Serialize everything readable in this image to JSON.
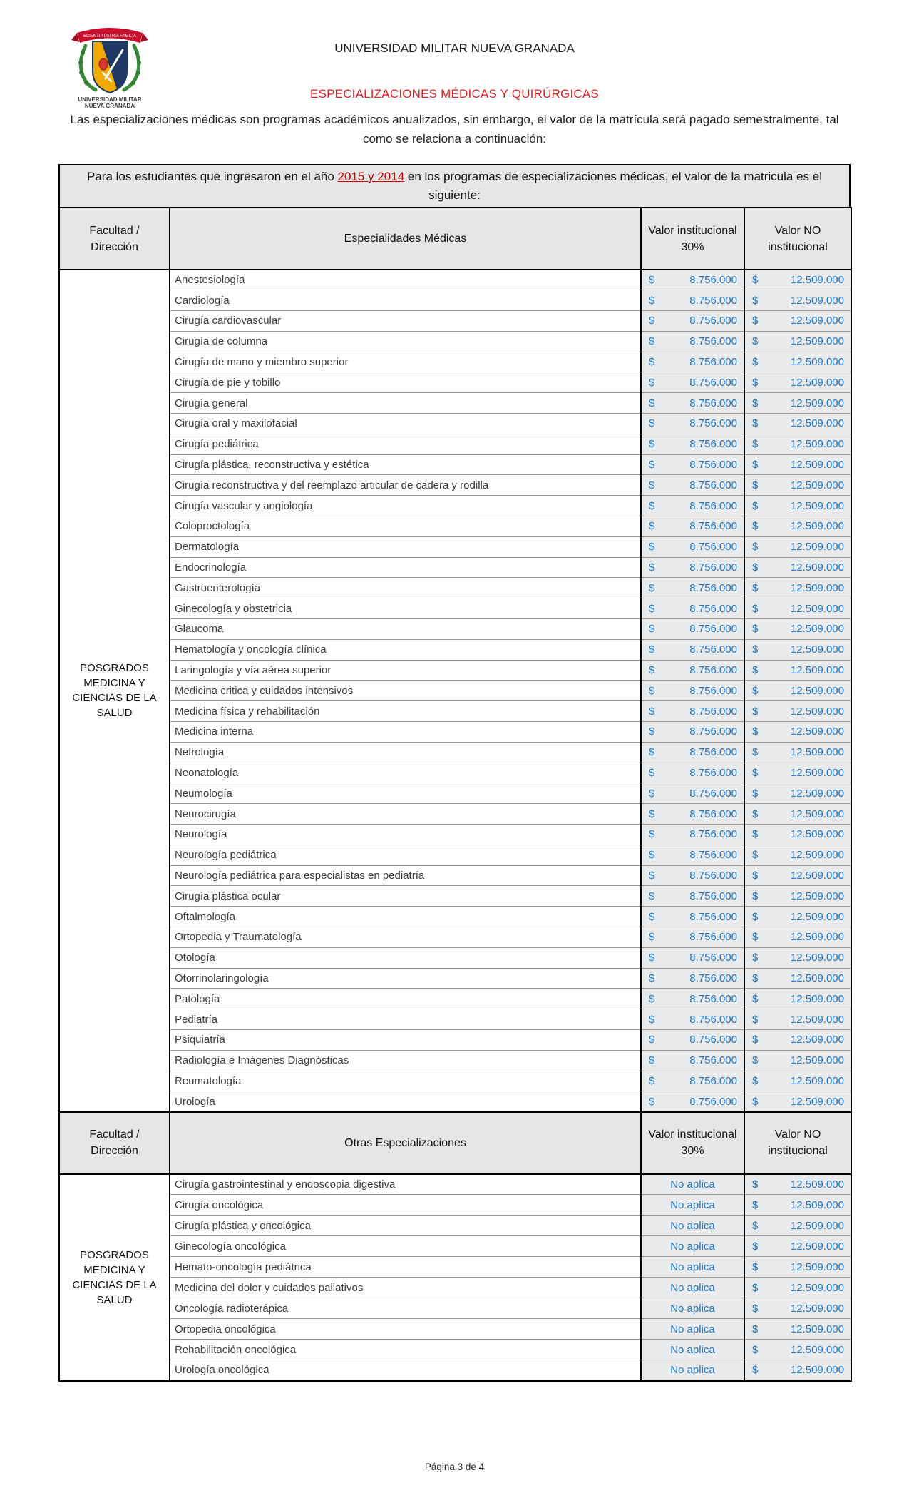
{
  "logo": {
    "motto": "SCIENTIA  PATRIA  FAMILIA",
    "caption_line1": "UNIVERSIDAD MILITAR",
    "caption_line2": "NUEVA GRANADA",
    "colors": {
      "ribbon": "#c8102e",
      "shield_gold": "#f2a900",
      "shield_navy": "#1f3864",
      "wreath_green": "#3a8a3c"
    }
  },
  "header": {
    "university": "UNIVERSIDAD MILITAR NUEVA GRANADA",
    "title": "ESPECIALIZACIONES MÉDICAS Y QUIRÚRGICAS",
    "title_color": "#dc2025",
    "intro": "Las especializaciones médicas son programas académicos anualizados, sin embargo, el valor de la matrícula será pagado semestralmente, tal como se relaciona a continuación:"
  },
  "banner": {
    "pre": "Para los estudiantes que ingresaron en el año ",
    "highlight": "2015 y 2014",
    "highlight_color": "#c00000",
    "post": " en los programas de especializaciones médicas, el valor de la matricula es el siguiente:"
  },
  "value_color": "#2577bd",
  "table1": {
    "col_headers": [
      "Facultad / Dirección",
      "Especialidades Médicas",
      "Valor institucional 30%",
      "Valor NO institucional"
    ],
    "faculty": "POSGRADOS MEDICINA Y CIENCIAS DE LA SALUD",
    "currency": "$",
    "institutional_value": "8.756.000",
    "non_institutional_value": "12.509.000",
    "rows": [
      "Anestesiología",
      "Cardiología",
      "Cirugía cardiovascular",
      "Cirugía de columna",
      "Cirugía de mano y miembro superior",
      "Cirugía de pie y tobillo",
      "Cirugía general",
      "Cirugía oral y maxilofacial",
      "Cirugía pediátrica",
      "Cirugía plástica, reconstructiva y estética",
      "Cirugía reconstructiva y del reemplazo articular de cadera y rodilla",
      "Cirugía vascular y angiología",
      "Coloproctología",
      "Dermatología",
      "Endocrinología",
      "Gastroenterología",
      "Ginecología y obstetricia",
      "Glaucoma",
      "Hematología y oncología clínica",
      "Laringología y vía aérea superior",
      "Medicina critica y cuidados intensivos",
      "Medicina física y rehabilitación",
      "Medicina interna",
      "Nefrología",
      "Neonatología",
      "Neumología",
      "Neurocirugía",
      "Neurología",
      "Neurología pediátrica",
      "Neurología pediátrica para especialistas en pediatría",
      "Cirugía plástica ocular",
      "Oftalmología",
      "Ortopedia y Traumatología",
      "Otología",
      "Otorrinolaringología",
      "Patología",
      "Pediatría",
      "Psiquiatría",
      "Radiología e Imágenes Diagnósticas",
      "Reumatología",
      "Urología"
    ]
  },
  "table2": {
    "col_headers": [
      "Facultad / Dirección",
      "Otras Especializaciones",
      "Valor institucional 30%",
      "Valor NO institucional"
    ],
    "faculty": "POSGRADOS MEDICINA Y CIENCIAS DE LA SALUD",
    "currency": "$",
    "institutional_value": "No aplica",
    "non_institutional_value": "12.509.000",
    "rows": [
      "Cirugía gastrointestinal y endoscopia digestiva",
      "Cirugía oncológica",
      "Cirugía plástica y oncológica",
      "Ginecología oncológica",
      "Hemato-oncología pediátrica",
      "Medicina del dolor y cuidados paliativos",
      "Oncología radioterápica",
      "Ortopedia oncológica",
      "Rehabilitación oncológica",
      "Urología oncológica"
    ]
  },
  "footer": {
    "page_indicator": "Página 3 de 4"
  }
}
